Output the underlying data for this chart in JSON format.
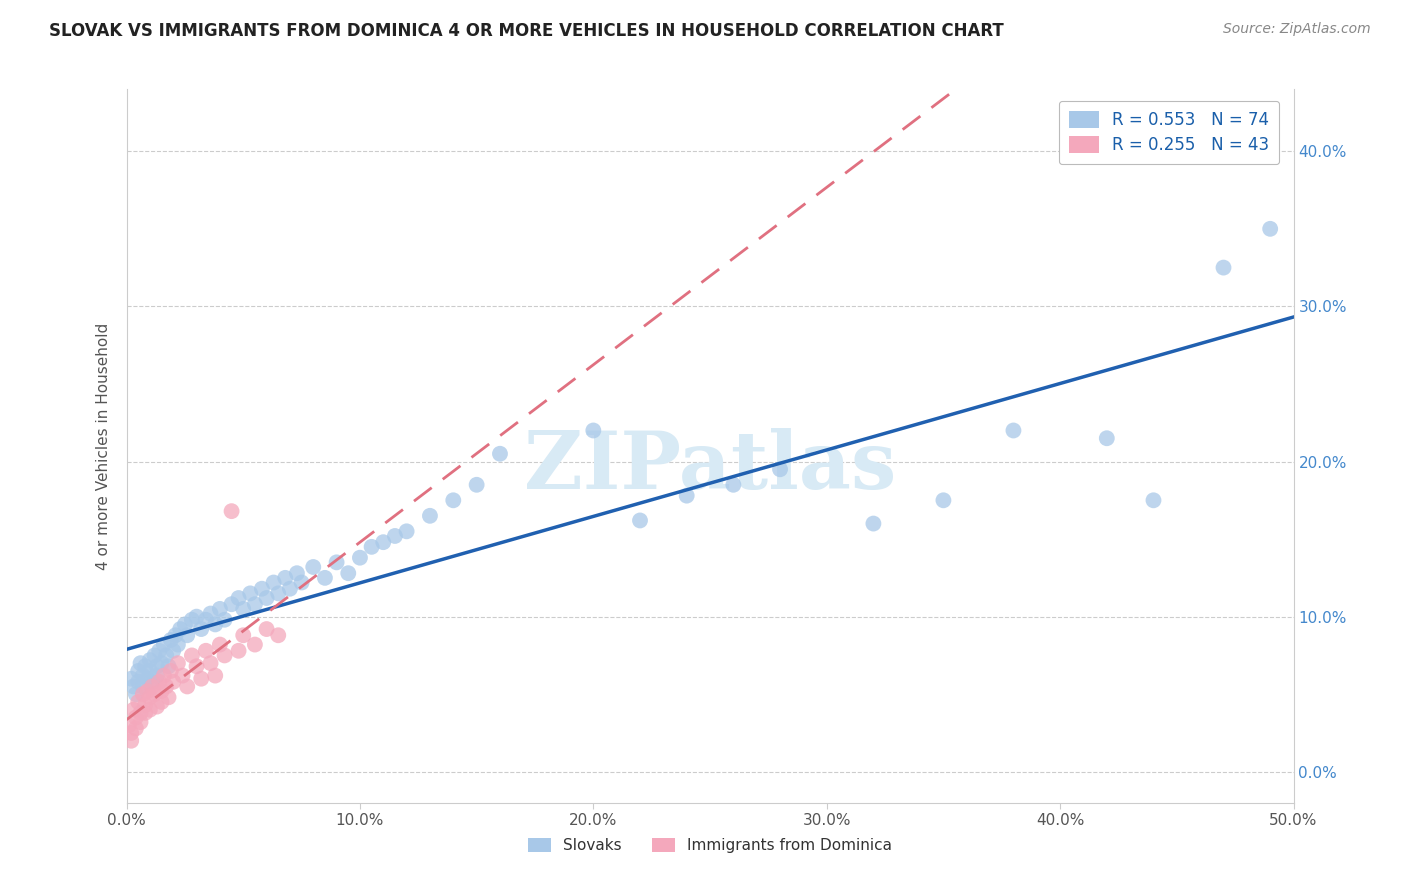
{
  "title": "SLOVAK VS IMMIGRANTS FROM DOMINICA 4 OR MORE VEHICLES IN HOUSEHOLD CORRELATION CHART",
  "source": "Source: ZipAtlas.com",
  "ylabel": "4 or more Vehicles in Household",
  "xlim": [
    0.0,
    0.5
  ],
  "ylim": [
    -0.02,
    0.44
  ],
  "R_slovak": 0.553,
  "N_slovak": 74,
  "R_dominica": 0.255,
  "N_dominica": 43,
  "slovak_color": "#A8C8E8",
  "dominica_color": "#F4A8BC",
  "slovak_line_color": "#2060B0",
  "dominica_line_color": "#E07080",
  "watermark_color": "#D8EAF5",
  "slovak_x": [
    0.002,
    0.003,
    0.004,
    0.005,
    0.005,
    0.006,
    0.007,
    0.007,
    0.008,
    0.009,
    0.01,
    0.01,
    0.011,
    0.012,
    0.013,
    0.013,
    0.014,
    0.015,
    0.016,
    0.017,
    0.018,
    0.019,
    0.02,
    0.021,
    0.022,
    0.023,
    0.025,
    0.026,
    0.028,
    0.03,
    0.032,
    0.034,
    0.036,
    0.038,
    0.04,
    0.042,
    0.045,
    0.048,
    0.05,
    0.053,
    0.055,
    0.058,
    0.06,
    0.063,
    0.065,
    0.068,
    0.07,
    0.073,
    0.075,
    0.08,
    0.085,
    0.09,
    0.095,
    0.1,
    0.105,
    0.11,
    0.115,
    0.12,
    0.13,
    0.14,
    0.15,
    0.16,
    0.2,
    0.22,
    0.24,
    0.26,
    0.28,
    0.32,
    0.35,
    0.38,
    0.42,
    0.44,
    0.47,
    0.49
  ],
  "slovak_y": [
    0.06,
    0.055,
    0.05,
    0.065,
    0.058,
    0.07,
    0.062,
    0.055,
    0.068,
    0.06,
    0.072,
    0.065,
    0.058,
    0.075,
    0.068,
    0.062,
    0.078,
    0.07,
    0.082,
    0.075,
    0.068,
    0.085,
    0.078,
    0.088,
    0.082,
    0.092,
    0.095,
    0.088,
    0.098,
    0.1,
    0.092,
    0.098,
    0.102,
    0.095,
    0.105,
    0.098,
    0.108,
    0.112,
    0.105,
    0.115,
    0.108,
    0.118,
    0.112,
    0.122,
    0.115,
    0.125,
    0.118,
    0.128,
    0.122,
    0.132,
    0.125,
    0.135,
    0.128,
    0.138,
    0.145,
    0.148,
    0.152,
    0.155,
    0.165,
    0.175,
    0.185,
    0.205,
    0.22,
    0.162,
    0.178,
    0.185,
    0.195,
    0.16,
    0.175,
    0.22,
    0.215,
    0.175,
    0.325,
    0.35
  ],
  "dominica_x": [
    0.001,
    0.002,
    0.002,
    0.003,
    0.004,
    0.004,
    0.005,
    0.006,
    0.006,
    0.007,
    0.008,
    0.008,
    0.009,
    0.01,
    0.01,
    0.011,
    0.012,
    0.013,
    0.014,
    0.015,
    0.015,
    0.016,
    0.017,
    0.018,
    0.019,
    0.02,
    0.022,
    0.024,
    0.026,
    0.028,
    0.03,
    0.032,
    0.034,
    0.036,
    0.038,
    0.04,
    0.042,
    0.045,
    0.048,
    0.05,
    0.055,
    0.06,
    0.065
  ],
  "dominica_y": [
    0.03,
    0.025,
    0.02,
    0.04,
    0.035,
    0.028,
    0.045,
    0.038,
    0.032,
    0.05,
    0.043,
    0.038,
    0.052,
    0.048,
    0.04,
    0.055,
    0.05,
    0.042,
    0.058,
    0.052,
    0.045,
    0.062,
    0.055,
    0.048,
    0.065,
    0.058,
    0.07,
    0.062,
    0.055,
    0.075,
    0.068,
    0.06,
    0.078,
    0.07,
    0.062,
    0.082,
    0.075,
    0.168,
    0.078,
    0.088,
    0.082,
    0.092,
    0.088
  ]
}
